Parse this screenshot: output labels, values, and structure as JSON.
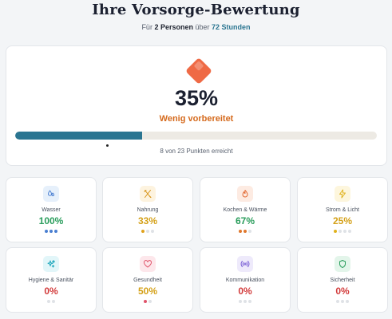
{
  "header": {
    "title": "Ihre Vorsorge-Bewertung",
    "subtitle_prefix": "Für",
    "persons": "2 Personen",
    "subtitle_mid": "über",
    "duration": "72 Stunden"
  },
  "summary": {
    "icon": "diamond-icon",
    "percent": "35%",
    "level": "Wenig vorbereitet",
    "progress_fraction": 0.35,
    "points_text": "8 von 23 Punkten erreicht"
  },
  "colors": {
    "accent": "#2a7591",
    "warning": "#d56a1d",
    "good": "#2a9d5c",
    "mid": "#d4a017",
    "bad": "#d23b3b"
  },
  "categories": [
    {
      "name": "Wasser",
      "percent": "100%",
      "icon": "water-drops-icon",
      "tone": "good",
      "dots": 3,
      "filled": 3,
      "dot_color": "#4a7fd1",
      "icon_bg": "#e6f0fb",
      "icon_color": "#4a7fd1"
    },
    {
      "name": "Nahrung",
      "percent": "33%",
      "icon": "utensils-icon",
      "tone": "mid",
      "dots": 3,
      "filled": 1,
      "dot_color": "#e0a21d",
      "icon_bg": "#fdf3df",
      "icon_color": "#d8941a"
    },
    {
      "name": "Kochen & Wärme",
      "percent": "67%",
      "icon": "flame-icon",
      "tone": "good",
      "dots": 3,
      "filled": 2,
      "dot_color": "#e0782d",
      "icon_bg": "#fdebe2",
      "icon_color": "#e26b35"
    },
    {
      "name": "Strom & Licht",
      "percent": "25%",
      "icon": "lightning-icon",
      "tone": "mid",
      "dots": 4,
      "filled": 1,
      "dot_color": "#e0b21d",
      "icon_bg": "#fdf6dd",
      "icon_color": "#e0b21d"
    },
    {
      "name": "Hygiene & Sanitär",
      "percent": "0%",
      "icon": "sparkle-icon",
      "tone": "bad",
      "dots": 2,
      "filled": 0,
      "dot_color": "#2bb5c9",
      "icon_bg": "#e2f6f9",
      "icon_color": "#22a9bd"
    },
    {
      "name": "Gesundheit",
      "percent": "50%",
      "icon": "heart-icon",
      "tone": "mid",
      "dots": 2,
      "filled": 1,
      "dot_color": "#e0546b",
      "icon_bg": "#fde7eb",
      "icon_color": "#e0546b"
    },
    {
      "name": "Kommunikation",
      "percent": "0%",
      "icon": "radio-signal-icon",
      "tone": "bad",
      "dots": 3,
      "filled": 0,
      "dot_color": "#7b61d6",
      "icon_bg": "#eeeafb",
      "icon_color": "#7b61d6"
    },
    {
      "name": "Sicherheit",
      "percent": "0%",
      "icon": "shield-icon",
      "tone": "bad",
      "dots": 3,
      "filled": 0,
      "dot_color": "#2a9d5c",
      "icon_bg": "#e3f5ea",
      "icon_color": "#2a9d5c"
    }
  ]
}
